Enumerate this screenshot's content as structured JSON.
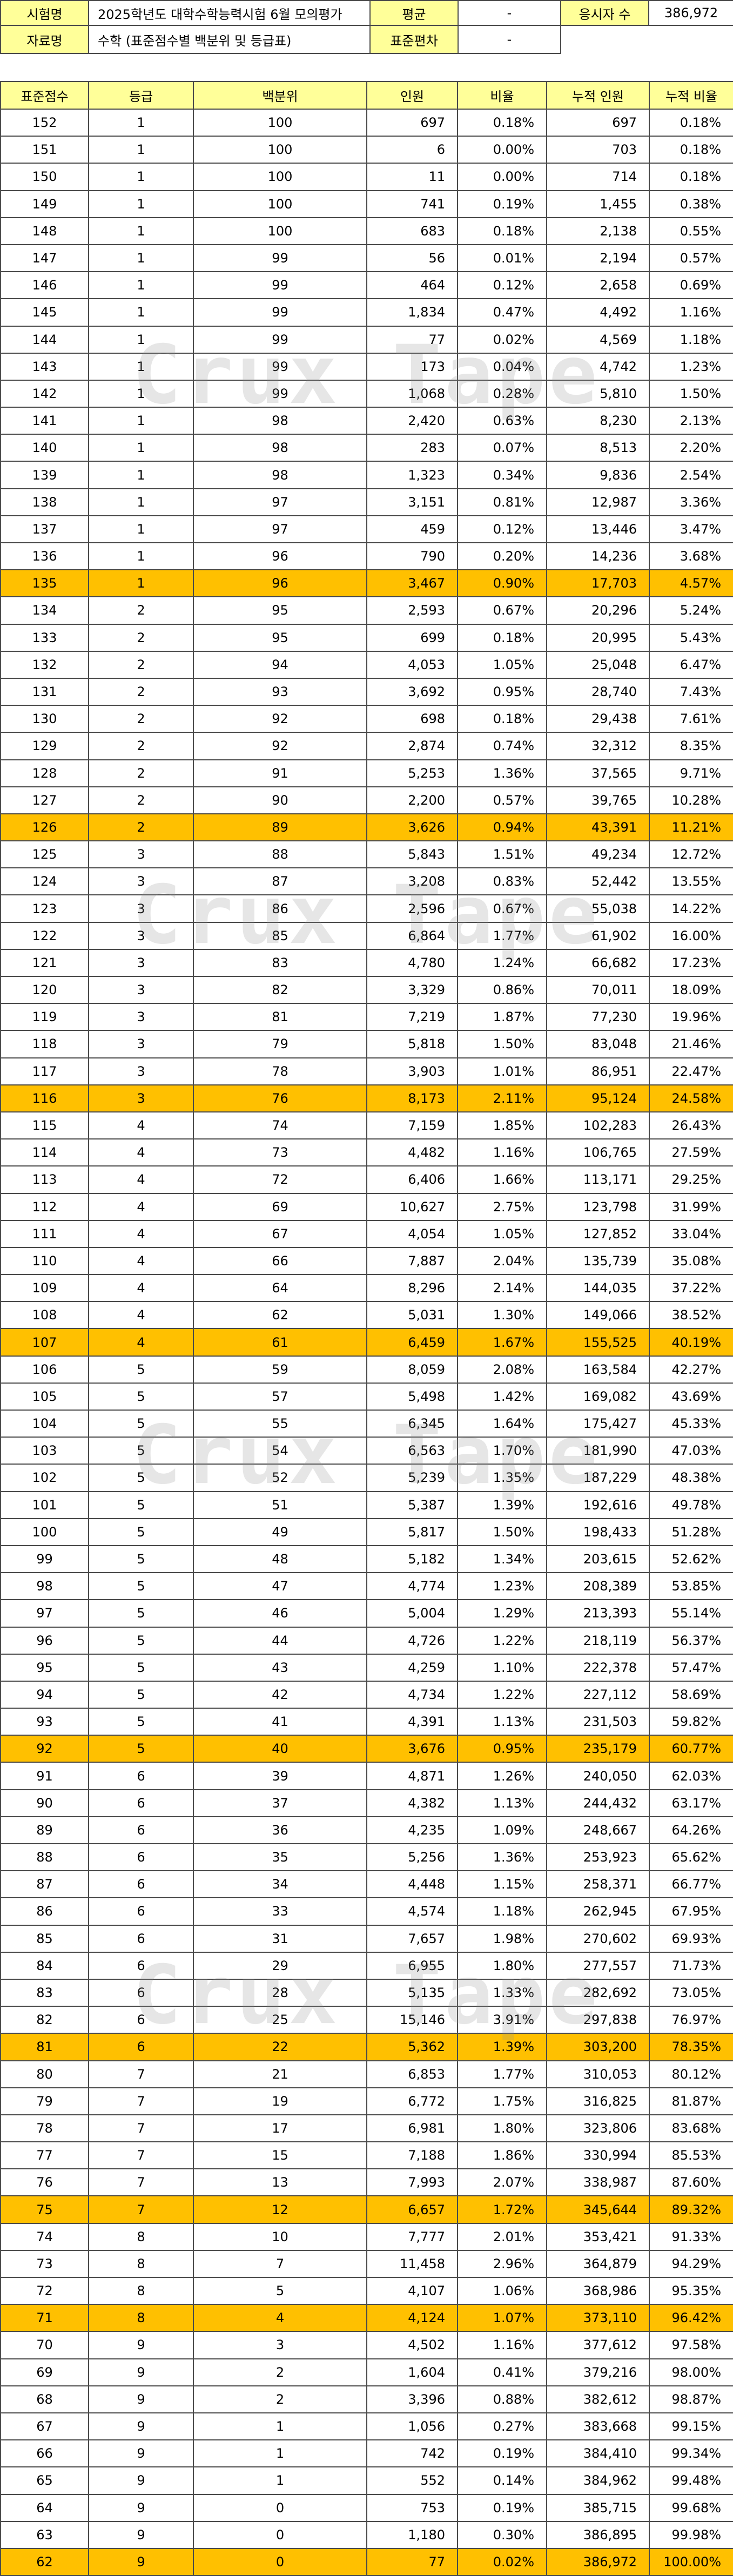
{
  "header": {
    "exam_label": "시험명",
    "exam_name": "2025학년도 대학수학능력시험 6월 모의평가",
    "mean_label": "평균",
    "mean_value": "-",
    "examinees_label": "응시자 수",
    "examinees_value": "386,972",
    "data_label": "자료명",
    "data_name": "수학 (표준점수별 백분위 및 등급표)",
    "sd_label": "표준편차",
    "sd_value": "-"
  },
  "table": {
    "columns": [
      "표준점수",
      "등급",
      "백분위",
      "인원",
      "비율",
      "누적 인원",
      "누적 비율"
    ],
    "rows": [
      [
        "152",
        "1",
        "100",
        "697",
        "0.18%",
        "697",
        "0.18%"
      ],
      [
        "151",
        "1",
        "100",
        "6",
        "0.00%",
        "703",
        "0.18%"
      ],
      [
        "150",
        "1",
        "100",
        "11",
        "0.00%",
        "714",
        "0.18%"
      ],
      [
        "149",
        "1",
        "100",
        "741",
        "0.19%",
        "1,455",
        "0.38%"
      ],
      [
        "148",
        "1",
        "100",
        "683",
        "0.18%",
        "2,138",
        "0.55%"
      ],
      [
        "147",
        "1",
        "99",
        "56",
        "0.01%",
        "2,194",
        "0.57%"
      ],
      [
        "146",
        "1",
        "99",
        "464",
        "0.12%",
        "2,658",
        "0.69%"
      ],
      [
        "145",
        "1",
        "99",
        "1,834",
        "0.47%",
        "4,492",
        "1.16%"
      ],
      [
        "144",
        "1",
        "99",
        "77",
        "0.02%",
        "4,569",
        "1.18%"
      ],
      [
        "143",
        "1",
        "99",
        "173",
        "0.04%",
        "4,742",
        "1.23%"
      ],
      [
        "142",
        "1",
        "99",
        "1,068",
        "0.28%",
        "5,810",
        "1.50%"
      ],
      [
        "141",
        "1",
        "98",
        "2,420",
        "0.63%",
        "8,230",
        "2.13%"
      ],
      [
        "140",
        "1",
        "98",
        "283",
        "0.07%",
        "8,513",
        "2.20%"
      ],
      [
        "139",
        "1",
        "98",
        "1,323",
        "0.34%",
        "9,836",
        "2.54%"
      ],
      [
        "138",
        "1",
        "97",
        "3,151",
        "0.81%",
        "12,987",
        "3.36%"
      ],
      [
        "137",
        "1",
        "97",
        "459",
        "0.12%",
        "13,446",
        "3.47%"
      ],
      [
        "136",
        "1",
        "96",
        "790",
        "0.20%",
        "14,236",
        "3.68%"
      ],
      [
        "135",
        "1",
        "96",
        "3,467",
        "0.90%",
        "17,703",
        "4.57%"
      ],
      [
        "134",
        "2",
        "95",
        "2,593",
        "0.67%",
        "20,296",
        "5.24%"
      ],
      [
        "133",
        "2",
        "95",
        "699",
        "0.18%",
        "20,995",
        "5.43%"
      ],
      [
        "132",
        "2",
        "94",
        "4,053",
        "1.05%",
        "25,048",
        "6.47%"
      ],
      [
        "131",
        "2",
        "93",
        "3,692",
        "0.95%",
        "28,740",
        "7.43%"
      ],
      [
        "130",
        "2",
        "92",
        "698",
        "0.18%",
        "29,438",
        "7.61%"
      ],
      [
        "129",
        "2",
        "92",
        "2,874",
        "0.74%",
        "32,312",
        "8.35%"
      ],
      [
        "128",
        "2",
        "91",
        "5,253",
        "1.36%",
        "37,565",
        "9.71%"
      ],
      [
        "127",
        "2",
        "90",
        "2,200",
        "0.57%",
        "39,765",
        "10.28%"
      ],
      [
        "126",
        "2",
        "89",
        "3,626",
        "0.94%",
        "43,391",
        "11.21%"
      ],
      [
        "125",
        "3",
        "88",
        "5,843",
        "1.51%",
        "49,234",
        "12.72%"
      ],
      [
        "124",
        "3",
        "87",
        "3,208",
        "0.83%",
        "52,442",
        "13.55%"
      ],
      [
        "123",
        "3",
        "86",
        "2,596",
        "0.67%",
        "55,038",
        "14.22%"
      ],
      [
        "122",
        "3",
        "85",
        "6,864",
        "1.77%",
        "61,902",
        "16.00%"
      ],
      [
        "121",
        "3",
        "83",
        "4,780",
        "1.24%",
        "66,682",
        "17.23%"
      ],
      [
        "120",
        "3",
        "82",
        "3,329",
        "0.86%",
        "70,011",
        "18.09%"
      ],
      [
        "119",
        "3",
        "81",
        "7,219",
        "1.87%",
        "77,230",
        "19.96%"
      ],
      [
        "118",
        "3",
        "79",
        "5,818",
        "1.50%",
        "83,048",
        "21.46%"
      ],
      [
        "117",
        "3",
        "78",
        "3,903",
        "1.01%",
        "86,951",
        "22.47%"
      ],
      [
        "116",
        "3",
        "76",
        "8,173",
        "2.11%",
        "95,124",
        "24.58%"
      ],
      [
        "115",
        "4",
        "74",
        "7,159",
        "1.85%",
        "102,283",
        "26.43%"
      ],
      [
        "114",
        "4",
        "73",
        "4,482",
        "1.16%",
        "106,765",
        "27.59%"
      ],
      [
        "113",
        "4",
        "72",
        "6,406",
        "1.66%",
        "113,171",
        "29.25%"
      ],
      [
        "112",
        "4",
        "69",
        "10,627",
        "2.75%",
        "123,798",
        "31.99%"
      ],
      [
        "111",
        "4",
        "67",
        "4,054",
        "1.05%",
        "127,852",
        "33.04%"
      ],
      [
        "110",
        "4",
        "66",
        "7,887",
        "2.04%",
        "135,739",
        "35.08%"
      ],
      [
        "109",
        "4",
        "64",
        "8,296",
        "2.14%",
        "144,035",
        "37.22%"
      ],
      [
        "108",
        "4",
        "62",
        "5,031",
        "1.30%",
        "149,066",
        "38.52%"
      ],
      [
        "107",
        "4",
        "61",
        "6,459",
        "1.67%",
        "155,525",
        "40.19%"
      ],
      [
        "106",
        "5",
        "59",
        "8,059",
        "2.08%",
        "163,584",
        "42.27%"
      ],
      [
        "105",
        "5",
        "57",
        "5,498",
        "1.42%",
        "169,082",
        "43.69%"
      ],
      [
        "104",
        "5",
        "55",
        "6,345",
        "1.64%",
        "175,427",
        "45.33%"
      ],
      [
        "103",
        "5",
        "54",
        "6,563",
        "1.70%",
        "181,990",
        "47.03%"
      ],
      [
        "102",
        "5",
        "52",
        "5,239",
        "1.35%",
        "187,229",
        "48.38%"
      ],
      [
        "101",
        "5",
        "51",
        "5,387",
        "1.39%",
        "192,616",
        "49.78%"
      ],
      [
        "100",
        "5",
        "49",
        "5,817",
        "1.50%",
        "198,433",
        "51.28%"
      ],
      [
        "99",
        "5",
        "48",
        "5,182",
        "1.34%",
        "203,615",
        "52.62%"
      ],
      [
        "98",
        "5",
        "47",
        "4,774",
        "1.23%",
        "208,389",
        "53.85%"
      ],
      [
        "97",
        "5",
        "46",
        "5,004",
        "1.29%",
        "213,393",
        "55.14%"
      ],
      [
        "96",
        "5",
        "44",
        "4,726",
        "1.22%",
        "218,119",
        "56.37%"
      ],
      [
        "95",
        "5",
        "43",
        "4,259",
        "1.10%",
        "222,378",
        "57.47%"
      ],
      [
        "94",
        "5",
        "42",
        "4,734",
        "1.22%",
        "227,112",
        "58.69%"
      ],
      [
        "93",
        "5",
        "41",
        "4,391",
        "1.13%",
        "231,503",
        "59.82%"
      ],
      [
        "92",
        "5",
        "40",
        "3,676",
        "0.95%",
        "235,179",
        "60.77%"
      ],
      [
        "91",
        "6",
        "39",
        "4,871",
        "1.26%",
        "240,050",
        "62.03%"
      ],
      [
        "90",
        "6",
        "37",
        "4,382",
        "1.13%",
        "244,432",
        "63.17%"
      ],
      [
        "89",
        "6",
        "36",
        "4,235",
        "1.09%",
        "248,667",
        "64.26%"
      ],
      [
        "88",
        "6",
        "35",
        "5,256",
        "1.36%",
        "253,923",
        "65.62%"
      ],
      [
        "87",
        "6",
        "34",
        "4,448",
        "1.15%",
        "258,371",
        "66.77%"
      ],
      [
        "86",
        "6",
        "33",
        "4,574",
        "1.18%",
        "262,945",
        "67.95%"
      ],
      [
        "85",
        "6",
        "31",
        "7,657",
        "1.98%",
        "270,602",
        "69.93%"
      ],
      [
        "84",
        "6",
        "29",
        "6,955",
        "1.80%",
        "277,557",
        "71.73%"
      ],
      [
        "83",
        "6",
        "28",
        "5,135",
        "1.33%",
        "282,692",
        "73.05%"
      ],
      [
        "82",
        "6",
        "25",
        "15,146",
        "3.91%",
        "297,838",
        "76.97%"
      ],
      [
        "81",
        "6",
        "22",
        "5,362",
        "1.39%",
        "303,200",
        "78.35%"
      ],
      [
        "80",
        "7",
        "21",
        "6,853",
        "1.77%",
        "310,053",
        "80.12%"
      ],
      [
        "79",
        "7",
        "19",
        "6,772",
        "1.75%",
        "316,825",
        "81.87%"
      ],
      [
        "78",
        "7",
        "17",
        "6,981",
        "1.80%",
        "323,806",
        "83.68%"
      ],
      [
        "77",
        "7",
        "15",
        "7,188",
        "1.86%",
        "330,994",
        "85.53%"
      ],
      [
        "76",
        "7",
        "13",
        "7,993",
        "2.07%",
        "338,987",
        "87.60%"
      ],
      [
        "75",
        "7",
        "12",
        "6,657",
        "1.72%",
        "345,644",
        "89.32%"
      ],
      [
        "74",
        "8",
        "10",
        "7,777",
        "2.01%",
        "353,421",
        "91.33%"
      ],
      [
        "73",
        "8",
        "7",
        "11,458",
        "2.96%",
        "364,879",
        "94.29%"
      ],
      [
        "72",
        "8",
        "5",
        "4,107",
        "1.06%",
        "368,986",
        "95.35%"
      ],
      [
        "71",
        "8",
        "4",
        "4,124",
        "1.07%",
        "373,110",
        "96.42%"
      ],
      [
        "70",
        "9",
        "3",
        "4,502",
        "1.16%",
        "377,612",
        "97.58%"
      ],
      [
        "69",
        "9",
        "2",
        "1,604",
        "0.41%",
        "379,216",
        "98.00%"
      ],
      [
        "68",
        "9",
        "2",
        "3,396",
        "0.88%",
        "382,612",
        "98.87%"
      ],
      [
        "67",
        "9",
        "1",
        "1,056",
        "0.27%",
        "383,668",
        "99.15%"
      ],
      [
        "66",
        "9",
        "1",
        "742",
        "0.19%",
        "384,410",
        "99.34%"
      ],
      [
        "65",
        "9",
        "1",
        "552",
        "0.14%",
        "384,962",
        "99.48%"
      ],
      [
        "64",
        "9",
        "0",
        "753",
        "0.19%",
        "385,715",
        "99.68%"
      ],
      [
        "63",
        "9",
        "0",
        "1,180",
        "0.30%",
        "386,895",
        "99.98%"
      ],
      [
        "62",
        "9",
        "0",
        "77",
        "0.02%",
        "386,972",
        "100.00%"
      ]
    ],
    "highlighted_rows": [
      "135",
      "126",
      "116",
      "107",
      "92",
      "81",
      "75",
      "71",
      "62"
    ],
    "highlight_color": "#ffc000",
    "header_color": "#ffff99"
  },
  "watermark": {
    "text": "Crux Tape"
  }
}
